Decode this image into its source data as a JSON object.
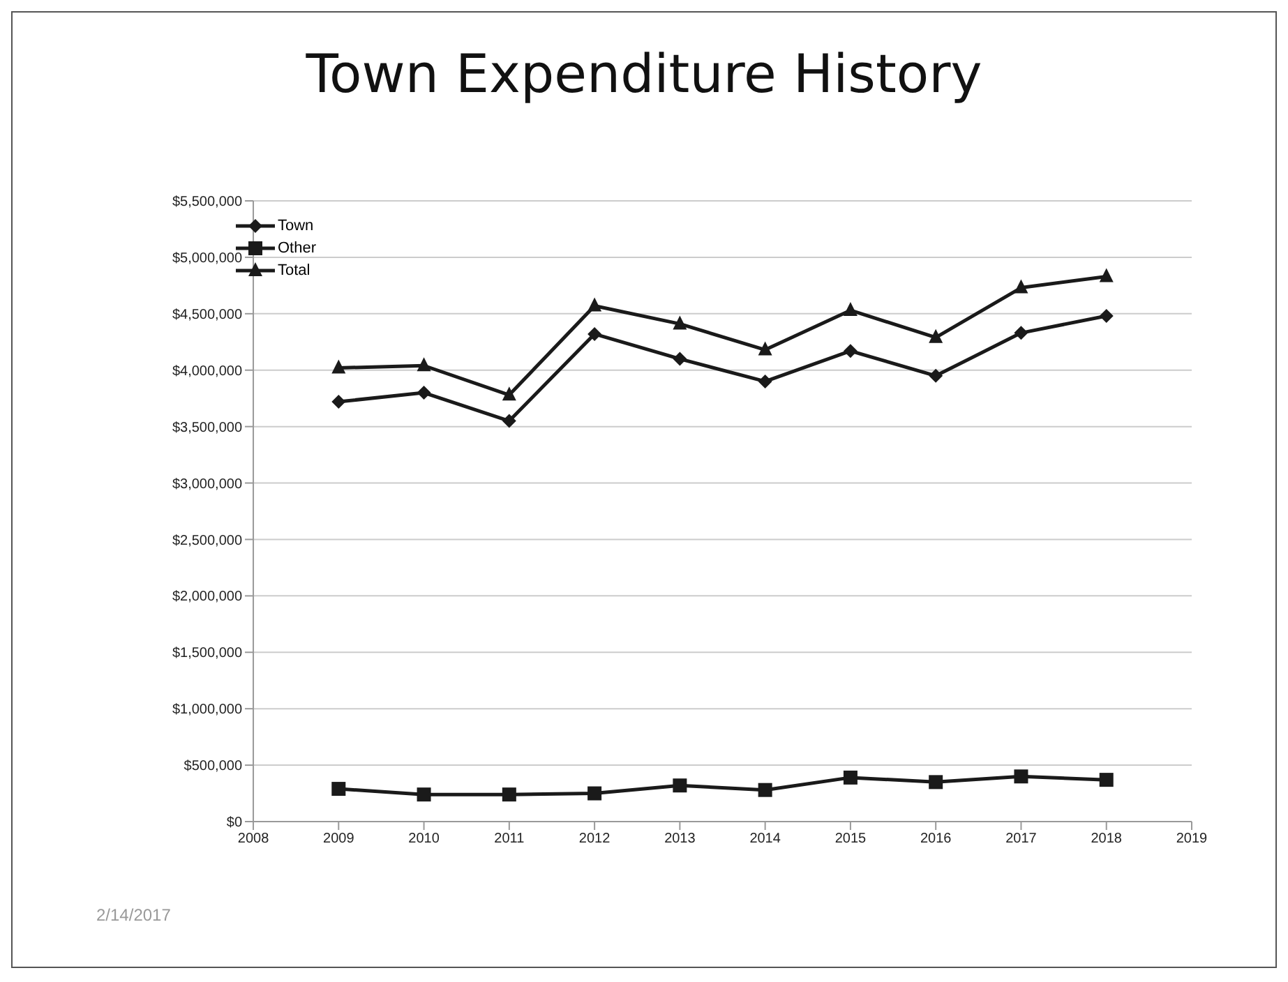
{
  "chart_data": {
    "type": "line",
    "title": "Town Expenditure History",
    "x": [
      2009,
      2010,
      2011,
      2012,
      2013,
      2014,
      2015,
      2016,
      2017,
      2018
    ],
    "series": [
      {
        "name": "Town",
        "color": "#1a1a1a",
        "marker": "diamond",
        "values": [
          3720000,
          3800000,
          3550000,
          4320000,
          4100000,
          3900000,
          4170000,
          3950000,
          4330000,
          4480000
        ]
      },
      {
        "name": "Other",
        "color": "#1a1a1a",
        "marker": "square",
        "values": [
          290000,
          240000,
          240000,
          250000,
          320000,
          280000,
          390000,
          350000,
          400000,
          370000
        ]
      },
      {
        "name": "Total",
        "color": "#1a1a1a",
        "marker": "triangle",
        "values": [
          4020000,
          4040000,
          3780000,
          4570000,
          4410000,
          4180000,
          4530000,
          4290000,
          4730000,
          4830000
        ]
      }
    ],
    "xlim": [
      2008,
      2019
    ],
    "xticks": [
      2008,
      2009,
      2010,
      2011,
      2012,
      2013,
      2014,
      2015,
      2016,
      2017,
      2018,
      2019
    ],
    "ylim": [
      0,
      5500000
    ],
    "yticks": [
      {
        "value": 0,
        "label": "$0"
      },
      {
        "value": 500000,
        "label": "$500,000"
      },
      {
        "value": 1000000,
        "label": "$1,000,000"
      },
      {
        "value": 1500000,
        "label": "$1,500,000"
      },
      {
        "value": 2000000,
        "label": "$2,000,000"
      },
      {
        "value": 2500000,
        "label": "$2,500,000"
      },
      {
        "value": 3000000,
        "label": "$3,000,000"
      },
      {
        "value": 3500000,
        "label": "$3,500,000"
      },
      {
        "value": 4000000,
        "label": "$4,000,000"
      },
      {
        "value": 4500000,
        "label": "$4,500,000"
      },
      {
        "value": 5000000,
        "label": "$5,000,000"
      },
      {
        "value": 5500000,
        "label": "$5,500,000"
      }
    ],
    "grid": "y",
    "legend": "top left",
    "line_style": "solid",
    "annotations": [
      "2/14/2017"
    ]
  }
}
